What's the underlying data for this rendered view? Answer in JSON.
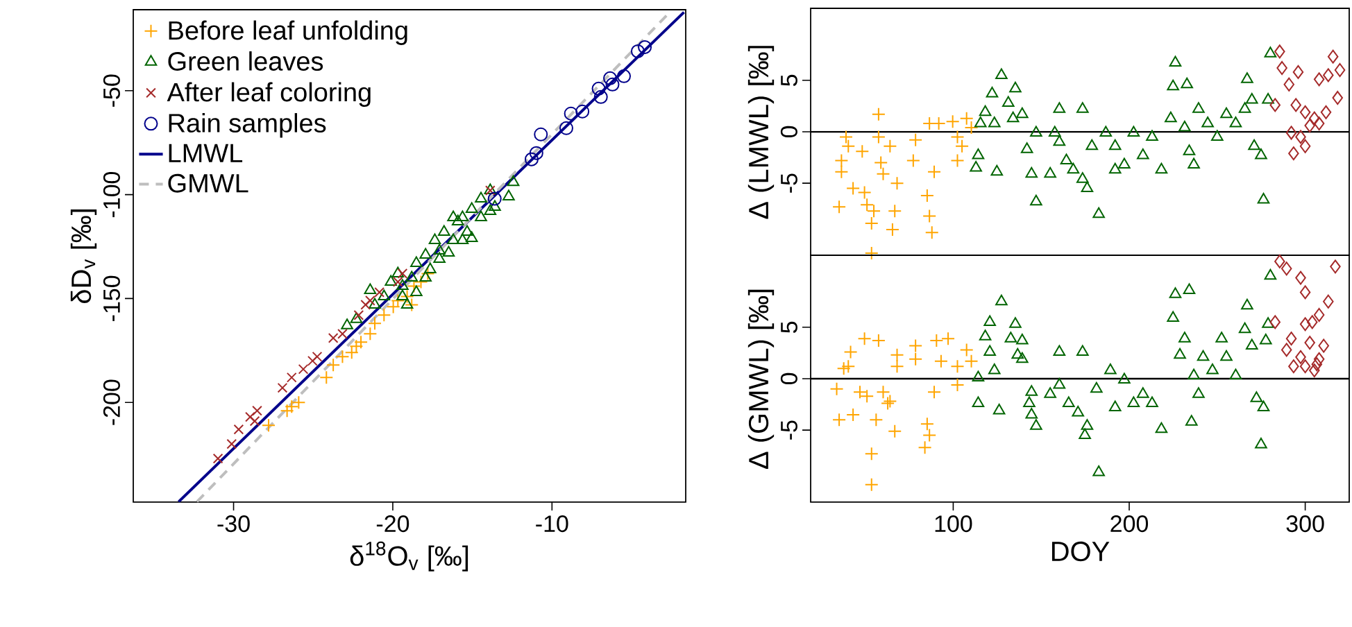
{
  "chart_data": [
    {
      "type": "scatter",
      "xlabel": "δ$^{18}$O$_{v}$ [‰]",
      "ylabel": "δD$_{v}$ [‰]",
      "xlim": [
        -36.3,
        -1.6
      ],
      "ylim": [
        -248,
        -11
      ],
      "xticks": [
        -30,
        -20,
        -10
      ],
      "yticks": [
        -50,
        -100,
        -150,
        -200
      ],
      "legend": "top left",
      "series": [
        {
          "name": "Before leaf unfolding",
          "color": "#ffa500",
          "marker": "plus",
          "x": [
            -27.8,
            -26.35,
            -25.91,
            -26.64,
            -24.17,
            -23.74,
            -23.16,
            -22.58,
            -22.0,
            -21.42,
            -21.13,
            -20.55,
            -19.97,
            -19.68,
            -19.1,
            -18.67,
            -18.23,
            -17.8,
            -18.81,
            -22.29
          ],
          "values": [
            -211,
            -202,
            -200,
            -204,
            -188,
            -182,
            -178,
            -176,
            -171,
            -167,
            -162,
            -158,
            -154,
            -151,
            -149,
            -144,
            -142,
            -138,
            -153,
            -173
          ]
        },
        {
          "name": "Green leaves",
          "color": "#006400",
          "marker": "triangle",
          "x": [
            -12.43,
            -12.72,
            -13.88,
            -14.46,
            -15.04,
            -15.62,
            -15.33,
            -15.91,
            -16.2,
            -16.78,
            -17.07,
            -17.36,
            -17.94,
            -17.65,
            -18.52,
            -18.81,
            -19.39,
            -19.68,
            -20.12,
            -20.55,
            -21.42,
            -21.13,
            -19.39,
            -19.1,
            -22.87,
            -22.29,
            -14.46,
            -13.88,
            -15.62,
            -15.04,
            -16.49,
            -17.07,
            -17.94,
            -18.52,
            -13.59,
            -16.2
          ],
          "values": [
            -94,
            -101,
            -98,
            -102,
            -107,
            -111,
            -118,
            -113,
            -122,
            -118,
            -127,
            -122,
            -129,
            -136,
            -133,
            -140,
            -144,
            -138,
            -142,
            -149,
            -146,
            -153,
            -149,
            -153,
            -163,
            -160,
            -111,
            -108,
            -122,
            -121,
            -128,
            -131,
            -140,
            -147,
            -106,
            -111
          ]
        },
        {
          "name": "After leaf coloring",
          "color": "#a52a2a",
          "marker": "cross",
          "x": [
            -30.98,
            -30.12,
            -29.68,
            -28.96,
            -28.52,
            -26.93,
            -26.35,
            -25.62,
            -25.04,
            -24.75,
            -23.74,
            -23.16,
            -22.14,
            -21.71,
            -21.42,
            -20.84,
            -19.68,
            -19.39,
            -13.88,
            -28.67
          ],
          "values": [
            -227,
            -220,
            -213,
            -207,
            -204,
            -193,
            -188,
            -184,
            -180,
            -178,
            -169,
            -167,
            -158,
            -153,
            -151,
            -147,
            -142,
            -138,
            -98,
            -209
          ]
        },
        {
          "name": "Rain samples",
          "color": "#00008b",
          "marker": "circle",
          "x": [
            -4.17,
            -4.61,
            -5.48,
            -6.35,
            -6.2,
            -7.07,
            -6.93,
            -8.09,
            -8.81,
            -9.1,
            -10.7,
            -10.98,
            -11.28,
            -13.6
          ],
          "values": [
            -29,
            -31,
            -43,
            -44,
            -47,
            -49,
            -53,
            -60,
            -61,
            -68,
            -71,
            -80,
            -83,
            -102
          ]
        },
        {
          "name": "LMWL",
          "type": "line",
          "color": "#00008b",
          "line_style": "solid",
          "x": [
            -33.45,
            -1.71
          ],
          "values": [
            -247.8,
            -12.2
          ]
        },
        {
          "name": "GMWL",
          "type": "line",
          "color": "#bebebe",
          "line_style": "dashed",
          "x": [
            -32.3,
            -2.6
          ],
          "values": [
            -247.8,
            -12.2
          ]
        }
      ]
    },
    {
      "type": "scatter",
      "ylabel": "Δ (LMWL) [‰]",
      "xlim": [
        19,
        325
      ],
      "ylim": [
        -12,
        12
      ],
      "yticks": [
        -5,
        0,
        5
      ],
      "tick_labels": "y",
      "ref_lines": [
        {
          "axis": "y",
          "value": 0,
          "color": "#000000"
        }
      ],
      "series": [
        {
          "color": "#ffa500",
          "marker": "plus",
          "x": [
            57.6,
            39.1,
            40.4,
            36.5,
            36.5,
            48.3,
            57.6,
            64.1,
            58.9,
            60.2,
            68.1,
            43.1,
            49.6,
            51.0,
            35.2,
            54.9,
            66.8,
            65.5,
            53.6,
            78.6,
            77.3,
            89.2,
            85.2,
            86.5,
            87.9,
            86.5,
            91.8,
            99.7,
            107.6,
            102.4,
            102.4,
            105.0,
            110.3,
            53.6
          ],
          "values": [
            1.7,
            -0.5,
            -1.4,
            -2.8,
            -3.9,
            -1.9,
            -0.5,
            -1.4,
            -3.0,
            -4.1,
            -5.0,
            -5.5,
            -5.9,
            -7.1,
            -7.3,
            -7.7,
            -7.7,
            -9.5,
            -8.9,
            -0.8,
            -2.8,
            -3.9,
            -6.2,
            -8.2,
            -9.8,
            0.8,
            0.8,
            1.0,
            1.3,
            -0.5,
            -2.8,
            -1.4,
            0.4,
            -11.8
          ]
        },
        {
          "color": "#006400",
          "marker": "triangle",
          "x": [
            127.4,
            122.1,
            135.3,
            131.3,
            118.2,
            115.5,
            123.4,
            134.0,
            139.2,
            160.3,
            173.5,
            114.2,
            112.9,
            124.8,
            141.9,
            144.5,
            147.1,
            155.1,
            157.7,
            160.3,
            164.3,
            168.2,
            173.5,
            176.1,
            182.7,
            178.8,
            186.7,
            192.0,
            197.2,
            202.5,
            207.8,
            213.0,
            218.3,
            223.6,
            226.2,
            224.9,
            232.8,
            231.5,
            234.1,
            236.7,
            239.4,
            244.6,
            250.0,
            255.2,
            260.5,
            265.7,
            267.0,
            269.7,
            278.9,
            280.2,
            274.9,
            276.3,
            271.0,
            147.1,
            192.0
          ],
          "values": [
            5.5,
            3.7,
            4.2,
            2.8,
            1.9,
            0.8,
            0.8,
            1.3,
            1.7,
            2.2,
            2.2,
            -2.3,
            -3.5,
            -3.9,
            -1.7,
            -4.1,
            -6.8,
            -4.1,
            -0.1,
            -1.0,
            -2.8,
            -3.7,
            -4.6,
            -5.5,
            -8.0,
            -1.4,
            -0.1,
            -1.4,
            -3.2,
            -0.1,
            -2.3,
            -0.5,
            -3.7,
            1.3,
            6.7,
            4.4,
            4.6,
            0.4,
            -1.9,
            -3.2,
            2.2,
            0.8,
            -0.5,
            1.7,
            0.8,
            2.2,
            5.1,
            3.1,
            3.1,
            7.6,
            -2.3,
            -6.6,
            -1.4,
            -0.1,
            -3.7
          ]
        },
        {
          "color": "#a52a2a",
          "marker": "diamond",
          "x": [
            285.5,
            286.8,
            296.0,
            290.8,
            282.9,
            294.7,
            300.0,
            305.2,
            307.9,
            313.1,
            315.8,
            318.4,
            319.7,
            311.8,
            302.6,
            292.1,
            297.4,
            293.4,
            300.0,
            307.9
          ],
          "values": [
            7.8,
            6.2,
            5.8,
            4.6,
            2.6,
            2.6,
            1.9,
            1.3,
            5.1,
            5.5,
            7.3,
            3.3,
            6.0,
            1.9,
            0.6,
            -0.1,
            -0.5,
            -2.1,
            -1.4,
            0.8
          ]
        }
      ]
    },
    {
      "type": "scatter",
      "xlabel": "DOY",
      "ylabel": "Δ (GMWL) [‰]",
      "xlim": [
        19,
        325
      ],
      "ylim": [
        -12,
        12
      ],
      "xticks": [
        100,
        200,
        300
      ],
      "yticks": [
        -5,
        0,
        5
      ],
      "ref_lines": [
        {
          "axis": "y",
          "value": 0,
          "color": "#000000"
        }
      ],
      "series": [
        {
          "color": "#ffa500",
          "marker": "plus",
          "x": [
            49.6,
            57.6,
            41.7,
            40.4,
            37.8,
            68.1,
            78.6,
            78.6,
            90.5,
            97.1,
            93.1,
            102.4,
            107.6,
            110.3,
            102.4,
            33.8,
            47.0,
            51.0,
            60.2,
            62.8,
            43.1,
            35.2,
            56.2,
            66.8,
            85.2,
            86.5,
            83.9,
            89.2,
            53.6,
            53.6,
            64.1,
            68.1
          ],
          "values": [
            3.9,
            3.7,
            2.6,
            1.2,
            1.0,
            2.3,
            3.2,
            1.9,
            3.7,
            3.9,
            1.7,
            1.2,
            2.8,
            1.7,
            -0.6,
            -1.0,
            -1.3,
            -1.7,
            -1.3,
            -2.4,
            -3.5,
            -4.0,
            -4.0,
            -5.1,
            -4.4,
            -5.5,
            -6.7,
            -1.3,
            -7.3,
            -10.3,
            -2.2,
            1.2
          ]
        },
        {
          "color": "#006400",
          "marker": "triangle",
          "x": [
            127.4,
            120.8,
            135.3,
            118.2,
            132.7,
            139.2,
            120.8,
            136.6,
            160.3,
            173.5,
            114.2,
            123.4,
            139.2,
            114.2,
            126.1,
            144.5,
            143.2,
            144.5,
            147.1,
            155.1,
            160.3,
            165.6,
            170.9,
            176.1,
            174.8,
            182.7,
            181.4,
            189.3,
            197.2,
            202.5,
            207.8,
            213.0,
            218.3,
            224.9,
            226.2,
            234.1,
            231.5,
            228.8,
            236.7,
            235.4,
            242.0,
            247.3,
            252.5,
            255.2,
            260.5,
            265.7,
            267.0,
            269.7,
            278.9,
            280.2,
            277.6,
            272.3,
            276.3,
            274.9,
            192.0,
            239.4
          ],
          "values": [
            7.5,
            5.5,
            5.3,
            4.1,
            3.9,
            3.7,
            2.6,
            2.3,
            2.6,
            2.6,
            0.1,
            0.8,
            1.9,
            -2.4,
            -3.1,
            -1.3,
            -2.4,
            -3.5,
            -4.6,
            -1.5,
            -0.6,
            -2.4,
            -3.3,
            -4.6,
            -5.5,
            -9.1,
            -1.0,
            0.8,
            -0.1,
            -2.4,
            -1.5,
            -2.4,
            -4.9,
            5.9,
            8.2,
            8.6,
            3.9,
            2.3,
            0.3,
            -4.2,
            2.1,
            0.8,
            3.9,
            2.1,
            0.3,
            4.8,
            7.1,
            3.2,
            5.3,
            10.0,
            3.7,
            -1.9,
            -2.8,
            -6.4,
            -2.8,
            -1.5
          ]
        },
        {
          "color": "#a52a2a",
          "marker": "diamond",
          "x": [
            285.5,
            289.4,
            297.4,
            300.0,
            317.1,
            282.9,
            292.1,
            300.0,
            307.9,
            313.1,
            310.5,
            302.6,
            297.4,
            293.4,
            300.0,
            305.2,
            307.9,
            289.4,
            304.0,
            306.6
          ],
          "values": [
            11.4,
            10.7,
            9.8,
            8.4,
            10.9,
            5.5,
            3.9,
            5.3,
            6.2,
            7.5,
            3.2,
            3.5,
            2.1,
            1.2,
            1.2,
            0.8,
            1.9,
            2.8,
            5.5,
            1.4
          ]
        }
      ]
    }
  ]
}
